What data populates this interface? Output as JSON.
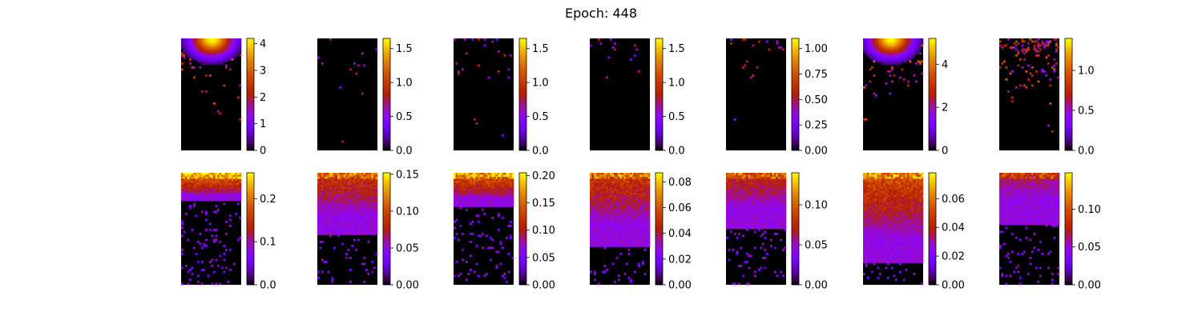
{
  "chart_data": {
    "type": "heatmap",
    "title": "Epoch: 448",
    "colormap": "gnuplot",
    "grid": false,
    "layout": {
      "rows": 2,
      "cols": 7
    },
    "panels": [
      {
        "row": 0,
        "col": 0,
        "vmax": 4.2,
        "ticks": [
          "0",
          "1",
          "2",
          "3",
          "4"
        ],
        "tickvals": [
          0,
          1,
          2,
          3,
          4
        ],
        "pattern": "sparse",
        "hotspot": 0.5,
        "density": 0.35,
        "peak": 1.0
      },
      {
        "row": 0,
        "col": 1,
        "vmax": 1.65,
        "ticks": [
          "0.0",
          "0.5",
          "1.0",
          "1.5"
        ],
        "tickvals": [
          0,
          0.5,
          1.0,
          1.5
        ],
        "pattern": "sparse",
        "hotspot": null,
        "density": 0.05,
        "peak": 0.7
      },
      {
        "row": 0,
        "col": 2,
        "vmax": 1.65,
        "ticks": [
          "0.0",
          "0.5",
          "1.0",
          "1.5"
        ],
        "tickvals": [
          0,
          0.5,
          1.0,
          1.5
        ],
        "pattern": "sparse",
        "hotspot": null,
        "density": 0.06,
        "peak": 0.7
      },
      {
        "row": 0,
        "col": 3,
        "vmax": 1.65,
        "ticks": [
          "0.0",
          "0.5",
          "1.0",
          "1.5"
        ],
        "tickvals": [
          0,
          0.5,
          1.0,
          1.5
        ],
        "pattern": "sparse",
        "hotspot": null,
        "density": 0.04,
        "peak": 0.65
      },
      {
        "row": 0,
        "col": 4,
        "vmax": 1.1,
        "ticks": [
          "0.00",
          "0.25",
          "0.50",
          "0.75",
          "1.00"
        ],
        "tickvals": [
          0,
          0.25,
          0.5,
          0.75,
          1.0
        ],
        "pattern": "sparse",
        "hotspot": null,
        "density": 0.06,
        "peak": 0.8
      },
      {
        "row": 0,
        "col": 5,
        "vmax": 5.2,
        "ticks": [
          "0",
          "2",
          "4"
        ],
        "tickvals": [
          0,
          2,
          4
        ],
        "pattern": "sparse",
        "hotspot": 0.45,
        "density": 0.4,
        "peak": 1.0
      },
      {
        "row": 0,
        "col": 6,
        "vmax": 1.4,
        "ticks": [
          "0.0",
          "0.5",
          "1.0"
        ],
        "tickvals": [
          0,
          0.5,
          1.0
        ],
        "pattern": "sparse",
        "hotspot": null,
        "density": 0.35,
        "peak": 0.95
      },
      {
        "row": 1,
        "col": 0,
        "vmax": 0.26,
        "ticks": [
          "0.0",
          "0.1",
          "0.2"
        ],
        "tickvals": [
          0,
          0.1,
          0.2
        ],
        "pattern": "dense",
        "depth": 0.25,
        "top": 0.9
      },
      {
        "row": 1,
        "col": 1,
        "vmax": 0.152,
        "ticks": [
          "0.00",
          "0.05",
          "0.10",
          "0.15"
        ],
        "tickvals": [
          0,
          0.05,
          0.1,
          0.15
        ],
        "pattern": "dense",
        "depth": 0.55,
        "top": 0.7
      },
      {
        "row": 1,
        "col": 2,
        "vmax": 0.205,
        "ticks": [
          "0.00",
          "0.05",
          "0.10",
          "0.15",
          "0.20"
        ],
        "tickvals": [
          0,
          0.05,
          0.1,
          0.15,
          0.2
        ],
        "pattern": "dense",
        "depth": 0.3,
        "top": 0.85
      },
      {
        "row": 1,
        "col": 3,
        "vmax": 0.087,
        "ticks": [
          "0.00",
          "0.02",
          "0.04",
          "0.06",
          "0.08"
        ],
        "tickvals": [
          0,
          0.02,
          0.04,
          0.06,
          0.08
        ],
        "pattern": "dense",
        "depth": 0.65,
        "top": 0.72
      },
      {
        "row": 1,
        "col": 4,
        "vmax": 0.14,
        "ticks": [
          "0.00",
          "0.05",
          "0.10"
        ],
        "tickvals": [
          0,
          0.05,
          0.1
        ],
        "pattern": "dense",
        "depth": 0.5,
        "top": 0.65
      },
      {
        "row": 1,
        "col": 5,
        "vmax": 0.078,
        "ticks": [
          "0.00",
          "0.02",
          "0.04",
          "0.06"
        ],
        "tickvals": [
          0,
          0.02,
          0.04,
          0.06
        ],
        "pattern": "dense",
        "depth": 0.8,
        "top": 0.78
      },
      {
        "row": 1,
        "col": 6,
        "vmax": 0.148,
        "ticks": [
          "0.00",
          "0.05",
          "0.10"
        ],
        "tickvals": [
          0,
          0.05,
          0.1
        ],
        "pattern": "dense",
        "depth": 0.45,
        "top": 0.55
      }
    ]
  }
}
